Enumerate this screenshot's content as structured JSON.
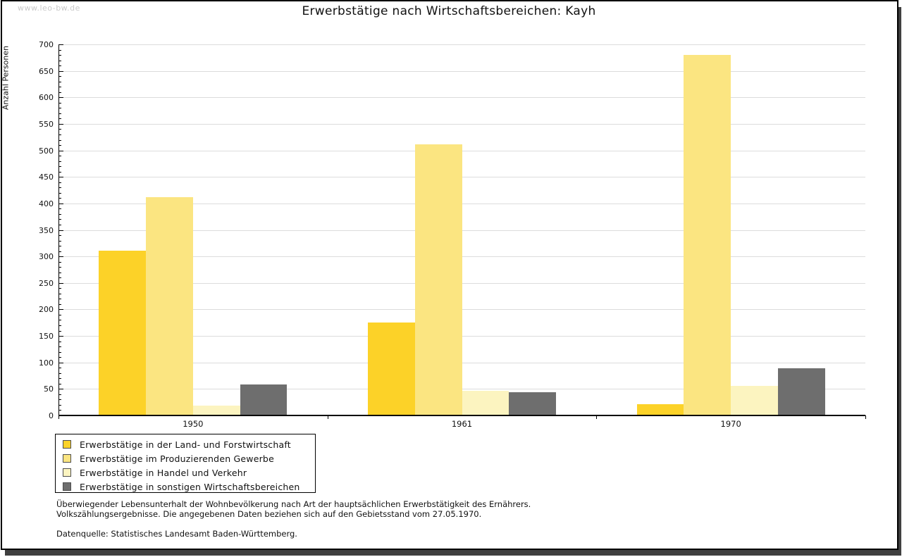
{
  "watermark": "www.leo-bw.de",
  "title": "Erwerbstätige nach Wirtschaftsbereichen: Kayh",
  "chart_data": {
    "type": "bar",
    "title": "Erwerbstätige nach Wirtschaftsbereichen: Kayh",
    "ylabel": "Anzahl Personen",
    "xlabel": "",
    "categories": [
      "1950",
      "1961",
      "1970"
    ],
    "series": [
      {
        "name": "Erwerbstätige in der Land- und Forstwirtschaft",
        "color": "#fcd228",
        "values": [
          311,
          176,
          21
        ]
      },
      {
        "name": "Erwerbstätige im Produzierenden Gewerbe",
        "color": "#fbe581",
        "values": [
          412,
          511,
          680
        ]
      },
      {
        "name": "Erwerbstätige in Handel und Verkehr",
        "color": "#fcf4c0",
        "values": [
          18,
          47,
          56
        ]
      },
      {
        "name": "Erwerbstätige in sonstigen Wirtschaftsbereichen",
        "color": "#6e6e6e",
        "values": [
          59,
          44,
          89
        ]
      }
    ],
    "ylim": [
      0,
      700
    ],
    "ytick_step": 50,
    "yminor_step": 10,
    "grid": true,
    "legend_position": "bottom-left"
  },
  "footnotes": {
    "line1": "Überwiegender Lebensunterhalt der Wohnbevölkerung nach Art der hauptsächlichen Erwerbstätigkeit des Ernährers.",
    "line2": "Volkszählungsergebnisse. Die angegebenen Daten beziehen sich auf den Gebietsstand vom 27.05.1970.",
    "source": "Datenquelle: Statistisches Landesamt Baden-Württemberg."
  },
  "colors": {
    "grid": "#dcdcdc",
    "axis": "#000000",
    "frame_shadow": "#3f3f3f",
    "watermark": "#c9c9c9"
  }
}
